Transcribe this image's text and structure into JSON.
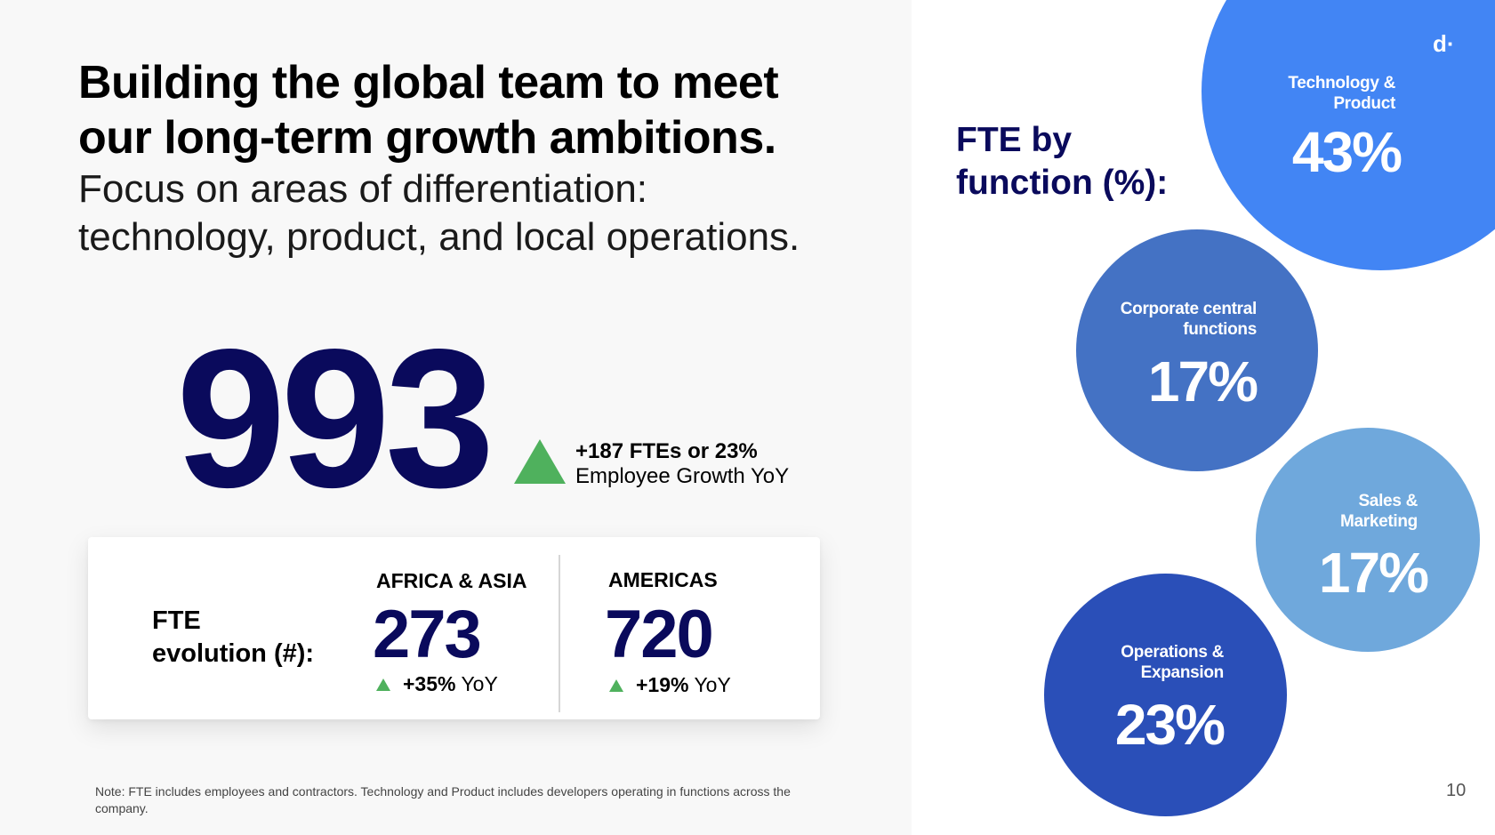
{
  "headline": {
    "line1": "Building the global team to meet",
    "line2": "our long-term growth ambitions."
  },
  "subheadline": {
    "line1": "Focus on areas of differentiation:",
    "line2": "technology, product, and local operations."
  },
  "total_fte": {
    "value": "993",
    "growth_strong": "+187 FTEs or 23%",
    "growth_desc": "Employee Growth YoY"
  },
  "fte_evolution": {
    "label_line1": "FTE",
    "label_line2": "evolution (#):",
    "regions": [
      {
        "name": "AFRICA & ASIA",
        "value": "273",
        "change": "+35%",
        "suffix": "YoY"
      },
      {
        "name": "AMERICAS",
        "value": "720",
        "change": "+19%",
        "suffix": "YoY"
      }
    ]
  },
  "footnote": "Note: FTE includes employees and contractors. Technology and Product includes developers operating in functions across the company.",
  "fte_by_function": {
    "title_line1": "FTE by",
    "title_line2": "function (%):",
    "items": [
      {
        "label_line1": "Technology &",
        "label_line2": "Product",
        "value": "43%",
        "color": "#4285f4"
      },
      {
        "label_line1": "Corporate central",
        "label_line2": "functions",
        "value": "17%",
        "color": "#4472c4"
      },
      {
        "label_line1": "Sales &",
        "label_line2": "Marketing",
        "value": "17%",
        "color": "#6fa8dc"
      },
      {
        "label_line1": "Operations &",
        "label_line2": "Expansion",
        "value": "23%",
        "color": "#2a4fb8"
      }
    ]
  },
  "logo": "d·",
  "page_number": "10",
  "colors": {
    "navy": "#0a0a5c",
    "growth_green": "#4fb15d",
    "left_panel_bg": "#f8f8f8"
  }
}
